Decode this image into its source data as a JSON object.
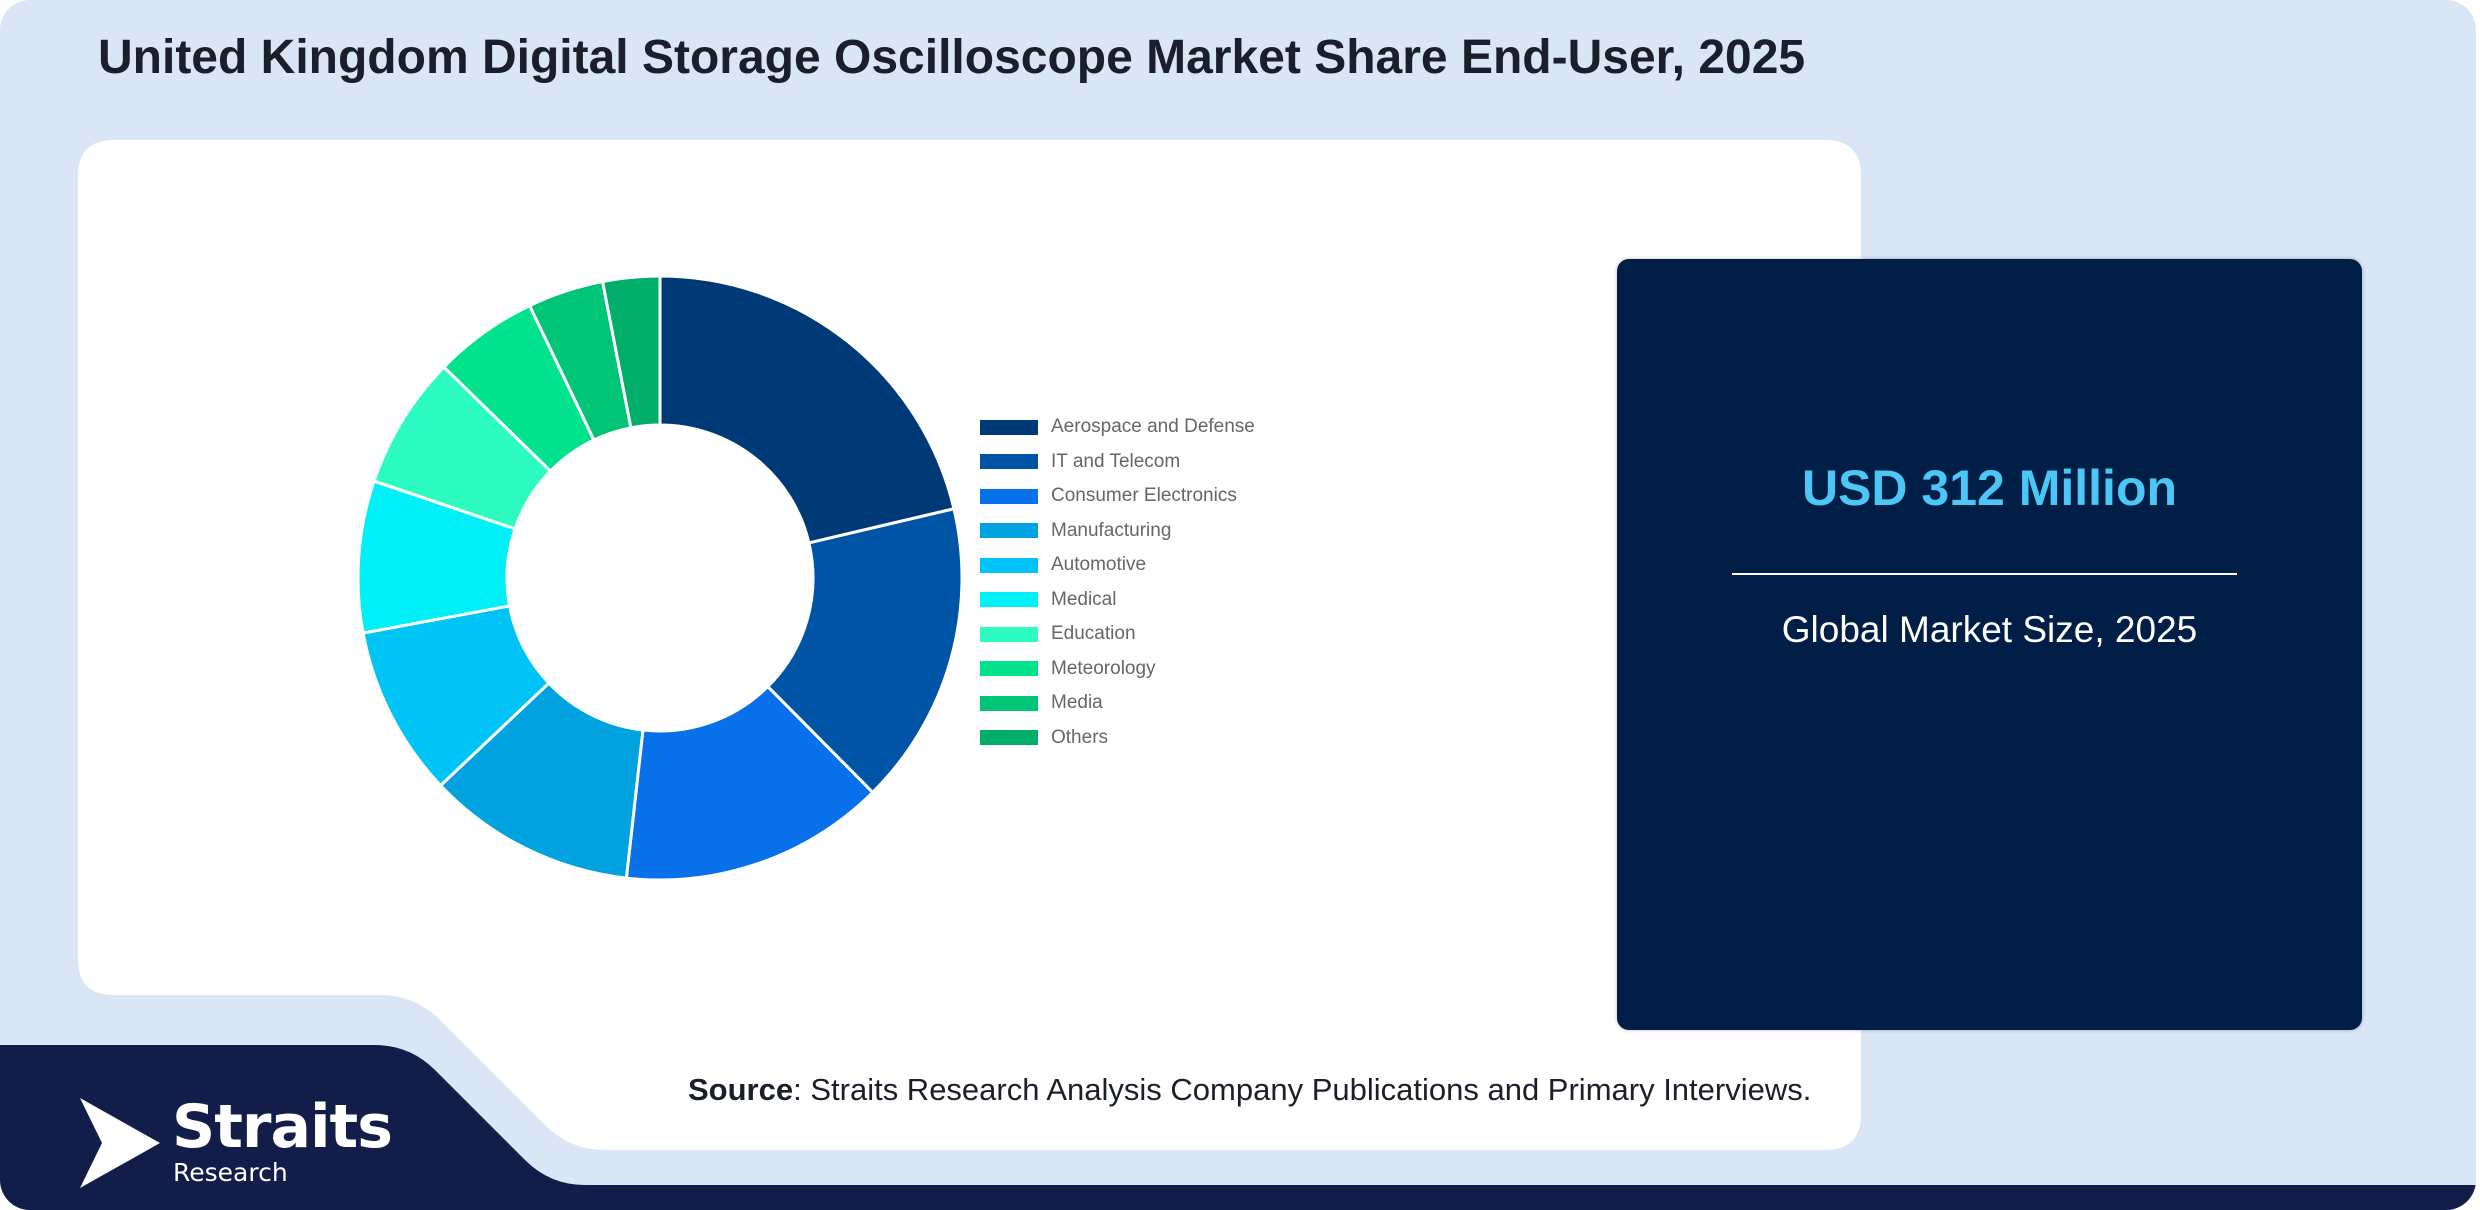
{
  "title": "United Kingdom Digital Storage Oscilloscope Market Share End-User, 2025",
  "colors": {
    "background": "#dae6f6",
    "panel": "#ffffff",
    "dark_navy": "#001e46",
    "band_navy": "#121d49",
    "accent_value": "#4cc6f4"
  },
  "chart_data": {
    "type": "pie",
    "donut": true,
    "legend_position": "right",
    "categories": [
      "Aerospace and Defense",
      "IT and Telecom",
      "Consumer Electronics",
      "Manufacturing",
      "Automotive",
      "Medical",
      "Education",
      "Meteorology",
      "Media",
      "Others"
    ],
    "values": [
      21,
      16,
      14,
      11,
      9,
      8,
      7,
      5.5,
      4,
      3
    ],
    "colors": [
      "#003a76",
      "#0054a6",
      "#0870e8",
      "#00a2e0",
      "#00c3f6",
      "#00f0f8",
      "#2dfcc2",
      "#00e28c",
      "#00c476",
      "#00ae6a"
    ]
  },
  "market_box": {
    "value": "USD 312 Million",
    "label": "Global Market Size, 2025"
  },
  "source": {
    "label": "Source",
    "text": ": Straits Research Analysis Company Publications and Primary Interviews."
  },
  "logo": {
    "name": "Straits",
    "sub": "Research",
    "icon": "straits-arrow-logo"
  }
}
